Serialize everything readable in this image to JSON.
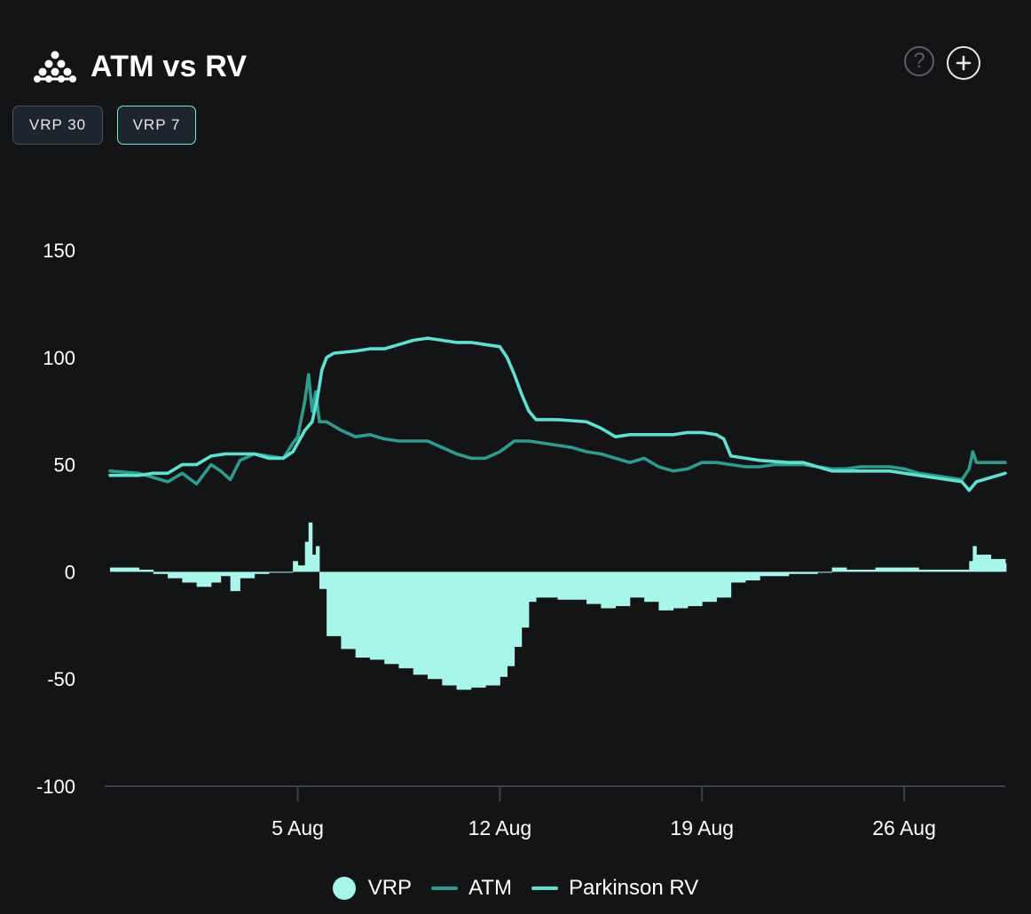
{
  "header": {
    "title": "ATM vs RV",
    "help_symbol": "?",
    "logo_icon": "molecule-logo-icon"
  },
  "tabs": [
    {
      "label": "VRP 30",
      "active": false
    },
    {
      "label": "VRP 7",
      "active": true
    }
  ],
  "legend": [
    {
      "label": "VRP",
      "marker": "dot",
      "color": "#a8f5ea"
    },
    {
      "label": "ATM",
      "marker": "line",
      "color": "#2f9a8e"
    },
    {
      "label": "Parkinson RV",
      "marker": "line",
      "color": "#5fe0d0"
    }
  ],
  "chart_data": {
    "type": "line",
    "x_type": "date",
    "x_range": [
      "2024-07-29T12:00",
      "2024-08-29T12:00"
    ],
    "x_ticks": [
      {
        "label": "5 Aug",
        "date": "2024-08-05"
      },
      {
        "label": "12 Aug",
        "date": "2024-08-12"
      },
      {
        "label": "19 Aug",
        "date": "2024-08-19"
      },
      {
        "label": "26 Aug",
        "date": "2024-08-26"
      }
    ],
    "y_ticks": [
      150,
      100,
      50,
      0,
      -50,
      -100
    ],
    "ylim": [
      -100,
      150
    ],
    "grid": false,
    "legend_position": "bottom",
    "series": [
      {
        "name": "ATM",
        "type": "line",
        "color": "#2f9a8e",
        "points": [
          [
            "2024-07-29T12:00",
            47
          ],
          [
            "2024-07-30T12:00",
            46
          ],
          [
            "2024-07-31T00:00",
            44
          ],
          [
            "2024-07-31T12:00",
            42
          ],
          [
            "2024-08-01T00:00",
            46
          ],
          [
            "2024-08-01T12:00",
            41
          ],
          [
            "2024-08-02T00:00",
            50
          ],
          [
            "2024-08-02T08:00",
            47
          ],
          [
            "2024-08-02T16:00",
            43
          ],
          [
            "2024-08-03T00:00",
            52
          ],
          [
            "2024-08-03T12:00",
            55
          ],
          [
            "2024-08-04T00:00",
            54
          ],
          [
            "2024-08-04T12:00",
            53
          ],
          [
            "2024-08-04T20:00",
            60
          ],
          [
            "2024-08-05T00:00",
            63
          ],
          [
            "2024-08-05T06:00",
            80
          ],
          [
            "2024-08-05T09:00",
            92
          ],
          [
            "2024-08-05T12:00",
            75
          ],
          [
            "2024-08-05T15:00",
            84
          ],
          [
            "2024-08-05T18:00",
            70
          ],
          [
            "2024-08-06T00:00",
            70
          ],
          [
            "2024-08-06T12:00",
            66
          ],
          [
            "2024-08-07T00:00",
            63
          ],
          [
            "2024-08-07T12:00",
            64
          ],
          [
            "2024-08-08T00:00",
            62
          ],
          [
            "2024-08-08T12:00",
            61
          ],
          [
            "2024-08-09T00:00",
            61
          ],
          [
            "2024-08-09T12:00",
            61
          ],
          [
            "2024-08-10T00:00",
            58
          ],
          [
            "2024-08-10T12:00",
            55
          ],
          [
            "2024-08-11T00:00",
            53
          ],
          [
            "2024-08-11T12:00",
            53
          ],
          [
            "2024-08-12T00:00",
            56
          ],
          [
            "2024-08-12T12:00",
            61
          ],
          [
            "2024-08-13T00:00",
            61
          ],
          [
            "2024-08-13T12:00",
            60
          ],
          [
            "2024-08-14T00:00",
            59
          ],
          [
            "2024-08-14T12:00",
            58
          ],
          [
            "2024-08-15T00:00",
            56
          ],
          [
            "2024-08-15T12:00",
            55
          ],
          [
            "2024-08-16T00:00",
            53
          ],
          [
            "2024-08-16T12:00",
            51
          ],
          [
            "2024-08-17T00:00",
            53
          ],
          [
            "2024-08-17T12:00",
            49
          ],
          [
            "2024-08-18T00:00",
            47
          ],
          [
            "2024-08-18T12:00",
            48
          ],
          [
            "2024-08-19T00:00",
            51
          ],
          [
            "2024-08-19T12:00",
            51
          ],
          [
            "2024-08-20T00:00",
            50
          ],
          [
            "2024-08-20T12:00",
            49
          ],
          [
            "2024-08-21T00:00",
            49
          ],
          [
            "2024-08-21T12:00",
            50
          ],
          [
            "2024-08-22T00:00",
            50
          ],
          [
            "2024-08-22T12:00",
            50
          ],
          [
            "2024-08-23T00:00",
            49
          ],
          [
            "2024-08-23T12:00",
            48
          ],
          [
            "2024-08-24T00:00",
            48
          ],
          [
            "2024-08-24T12:00",
            49
          ],
          [
            "2024-08-25T00:00",
            49
          ],
          [
            "2024-08-25T12:00",
            49
          ],
          [
            "2024-08-26T00:00",
            48
          ],
          [
            "2024-08-26T12:00",
            46
          ],
          [
            "2024-08-27T00:00",
            45
          ],
          [
            "2024-08-27T12:00",
            44
          ],
          [
            "2024-08-28T00:00",
            43
          ],
          [
            "2024-08-28T06:00",
            48
          ],
          [
            "2024-08-28T09:00",
            56
          ],
          [
            "2024-08-28T12:00",
            51
          ],
          [
            "2024-08-29T00:00",
            51
          ],
          [
            "2024-08-29T12:00",
            51
          ]
        ]
      },
      {
        "name": "Parkinson RV",
        "type": "line",
        "color": "#5fe0d0",
        "points": [
          [
            "2024-07-29T12:00",
            45
          ],
          [
            "2024-07-30T12:00",
            45
          ],
          [
            "2024-07-31T00:00",
            46
          ],
          [
            "2024-07-31T12:00",
            46
          ],
          [
            "2024-08-01T00:00",
            50
          ],
          [
            "2024-08-01T12:00",
            50
          ],
          [
            "2024-08-02T00:00",
            54
          ],
          [
            "2024-08-02T12:00",
            55
          ],
          [
            "2024-08-03T00:00",
            55
          ],
          [
            "2024-08-03T12:00",
            55
          ],
          [
            "2024-08-04T00:00",
            53
          ],
          [
            "2024-08-04T12:00",
            53
          ],
          [
            "2024-08-04T20:00",
            56
          ],
          [
            "2024-08-05T00:00",
            60
          ],
          [
            "2024-08-05T06:00",
            66
          ],
          [
            "2024-08-05T12:00",
            70
          ],
          [
            "2024-08-05T16:00",
            80
          ],
          [
            "2024-08-05T20:00",
            94
          ],
          [
            "2024-08-06T00:00",
            100
          ],
          [
            "2024-08-06T06:00",
            102
          ],
          [
            "2024-08-07T00:00",
            103
          ],
          [
            "2024-08-07T12:00",
            104
          ],
          [
            "2024-08-08T00:00",
            104
          ],
          [
            "2024-08-08T12:00",
            106
          ],
          [
            "2024-08-09T00:00",
            108
          ],
          [
            "2024-08-09T12:00",
            109
          ],
          [
            "2024-08-10T00:00",
            108
          ],
          [
            "2024-08-10T12:00",
            107
          ],
          [
            "2024-08-11T00:00",
            107
          ],
          [
            "2024-08-11T12:00",
            106
          ],
          [
            "2024-08-12T00:00",
            105
          ],
          [
            "2024-08-12T06:00",
            100
          ],
          [
            "2024-08-12T12:00",
            92
          ],
          [
            "2024-08-12T18:00",
            83
          ],
          [
            "2024-08-13T00:00",
            75
          ],
          [
            "2024-08-13T06:00",
            71
          ],
          [
            "2024-08-14T00:00",
            71
          ],
          [
            "2024-08-15T00:00",
            70
          ],
          [
            "2024-08-15T12:00",
            67
          ],
          [
            "2024-08-16T00:00",
            63
          ],
          [
            "2024-08-16T12:00",
            64
          ],
          [
            "2024-08-17T00:00",
            64
          ],
          [
            "2024-08-18T00:00",
            64
          ],
          [
            "2024-08-18T12:00",
            65
          ],
          [
            "2024-08-19T00:00",
            65
          ],
          [
            "2024-08-19T12:00",
            64
          ],
          [
            "2024-08-19T18:00",
            62
          ],
          [
            "2024-08-20T00:00",
            54
          ],
          [
            "2024-08-20T12:00",
            53
          ],
          [
            "2024-08-21T00:00",
            52
          ],
          [
            "2024-08-22T00:00",
            51
          ],
          [
            "2024-08-22T12:00",
            51
          ],
          [
            "2024-08-23T00:00",
            49
          ],
          [
            "2024-08-23T12:00",
            47
          ],
          [
            "2024-08-24T00:00",
            47
          ],
          [
            "2024-08-25T00:00",
            47
          ],
          [
            "2024-08-25T12:00",
            47
          ],
          [
            "2024-08-26T00:00",
            46
          ],
          [
            "2024-08-26T12:00",
            45
          ],
          [
            "2024-08-27T00:00",
            44
          ],
          [
            "2024-08-27T12:00",
            43
          ],
          [
            "2024-08-28T00:00",
            42
          ],
          [
            "2024-08-28T06:00",
            38
          ],
          [
            "2024-08-28T12:00",
            42
          ],
          [
            "2024-08-29T00:00",
            44
          ],
          [
            "2024-08-29T12:00",
            46
          ]
        ]
      },
      {
        "name": "VRP",
        "type": "bar",
        "color": "#a8f5ea",
        "points": [
          [
            "2024-07-29T12:00",
            2
          ],
          [
            "2024-07-30T12:00",
            1
          ],
          [
            "2024-07-31T00:00",
            -1
          ],
          [
            "2024-07-31T12:00",
            -3
          ],
          [
            "2024-08-01T00:00",
            -5
          ],
          [
            "2024-08-01T12:00",
            -7
          ],
          [
            "2024-08-02T00:00",
            -5
          ],
          [
            "2024-08-02T08:00",
            -2
          ],
          [
            "2024-08-02T16:00",
            -9
          ],
          [
            "2024-08-03T00:00",
            -3
          ],
          [
            "2024-08-03T12:00",
            -1
          ],
          [
            "2024-08-04T00:00",
            0
          ],
          [
            "2024-08-04T12:00",
            0
          ],
          [
            "2024-08-04T20:00",
            5
          ],
          [
            "2024-08-05T00:00",
            3
          ],
          [
            "2024-08-05T06:00",
            14
          ],
          [
            "2024-08-05T09:00",
            23
          ],
          [
            "2024-08-05T12:00",
            8
          ],
          [
            "2024-08-05T15:00",
            12
          ],
          [
            "2024-08-05T18:00",
            -8
          ],
          [
            "2024-08-06T00:00",
            -30
          ],
          [
            "2024-08-06T12:00",
            -36
          ],
          [
            "2024-08-07T00:00",
            -40
          ],
          [
            "2024-08-07T12:00",
            -41
          ],
          [
            "2024-08-08T00:00",
            -43
          ],
          [
            "2024-08-08T12:00",
            -45
          ],
          [
            "2024-08-09T00:00",
            -48
          ],
          [
            "2024-08-09T12:00",
            -50
          ],
          [
            "2024-08-10T00:00",
            -53
          ],
          [
            "2024-08-10T12:00",
            -55
          ],
          [
            "2024-08-11T00:00",
            -54
          ],
          [
            "2024-08-11T12:00",
            -53
          ],
          [
            "2024-08-12T00:00",
            -49
          ],
          [
            "2024-08-12T06:00",
            -44
          ],
          [
            "2024-08-12T12:00",
            -35
          ],
          [
            "2024-08-12T18:00",
            -26
          ],
          [
            "2024-08-13T00:00",
            -14
          ],
          [
            "2024-08-13T06:00",
            -12
          ],
          [
            "2024-08-14T00:00",
            -13
          ],
          [
            "2024-08-15T00:00",
            -15
          ],
          [
            "2024-08-15T12:00",
            -17
          ],
          [
            "2024-08-16T00:00",
            -16
          ],
          [
            "2024-08-16T12:00",
            -12
          ],
          [
            "2024-08-17T00:00",
            -14
          ],
          [
            "2024-08-17T12:00",
            -18
          ],
          [
            "2024-08-18T00:00",
            -17
          ],
          [
            "2024-08-18T12:00",
            -16
          ],
          [
            "2024-08-19T00:00",
            -14
          ],
          [
            "2024-08-19T12:00",
            -12
          ],
          [
            "2024-08-19T18:00",
            -12
          ],
          [
            "2024-08-20T00:00",
            -5
          ],
          [
            "2024-08-20T12:00",
            -4
          ],
          [
            "2024-08-21T00:00",
            -2
          ],
          [
            "2024-08-22T00:00",
            -1
          ],
          [
            "2024-08-22T12:00",
            -1
          ],
          [
            "2024-08-23T00:00",
            0
          ],
          [
            "2024-08-23T12:00",
            2
          ],
          [
            "2024-08-24T00:00",
            1
          ],
          [
            "2024-08-25T00:00",
            2
          ],
          [
            "2024-08-25T12:00",
            2
          ],
          [
            "2024-08-26T00:00",
            2
          ],
          [
            "2024-08-26T12:00",
            1
          ],
          [
            "2024-08-27T00:00",
            1
          ],
          [
            "2024-08-27T12:00",
            1
          ],
          [
            "2024-08-28T00:00",
            1
          ],
          [
            "2024-08-28T06:00",
            5
          ],
          [
            "2024-08-28T09:00",
            12
          ],
          [
            "2024-08-28T12:00",
            8
          ],
          [
            "2024-08-29T00:00",
            6
          ],
          [
            "2024-08-29T12:00",
            4
          ]
        ]
      }
    ]
  }
}
